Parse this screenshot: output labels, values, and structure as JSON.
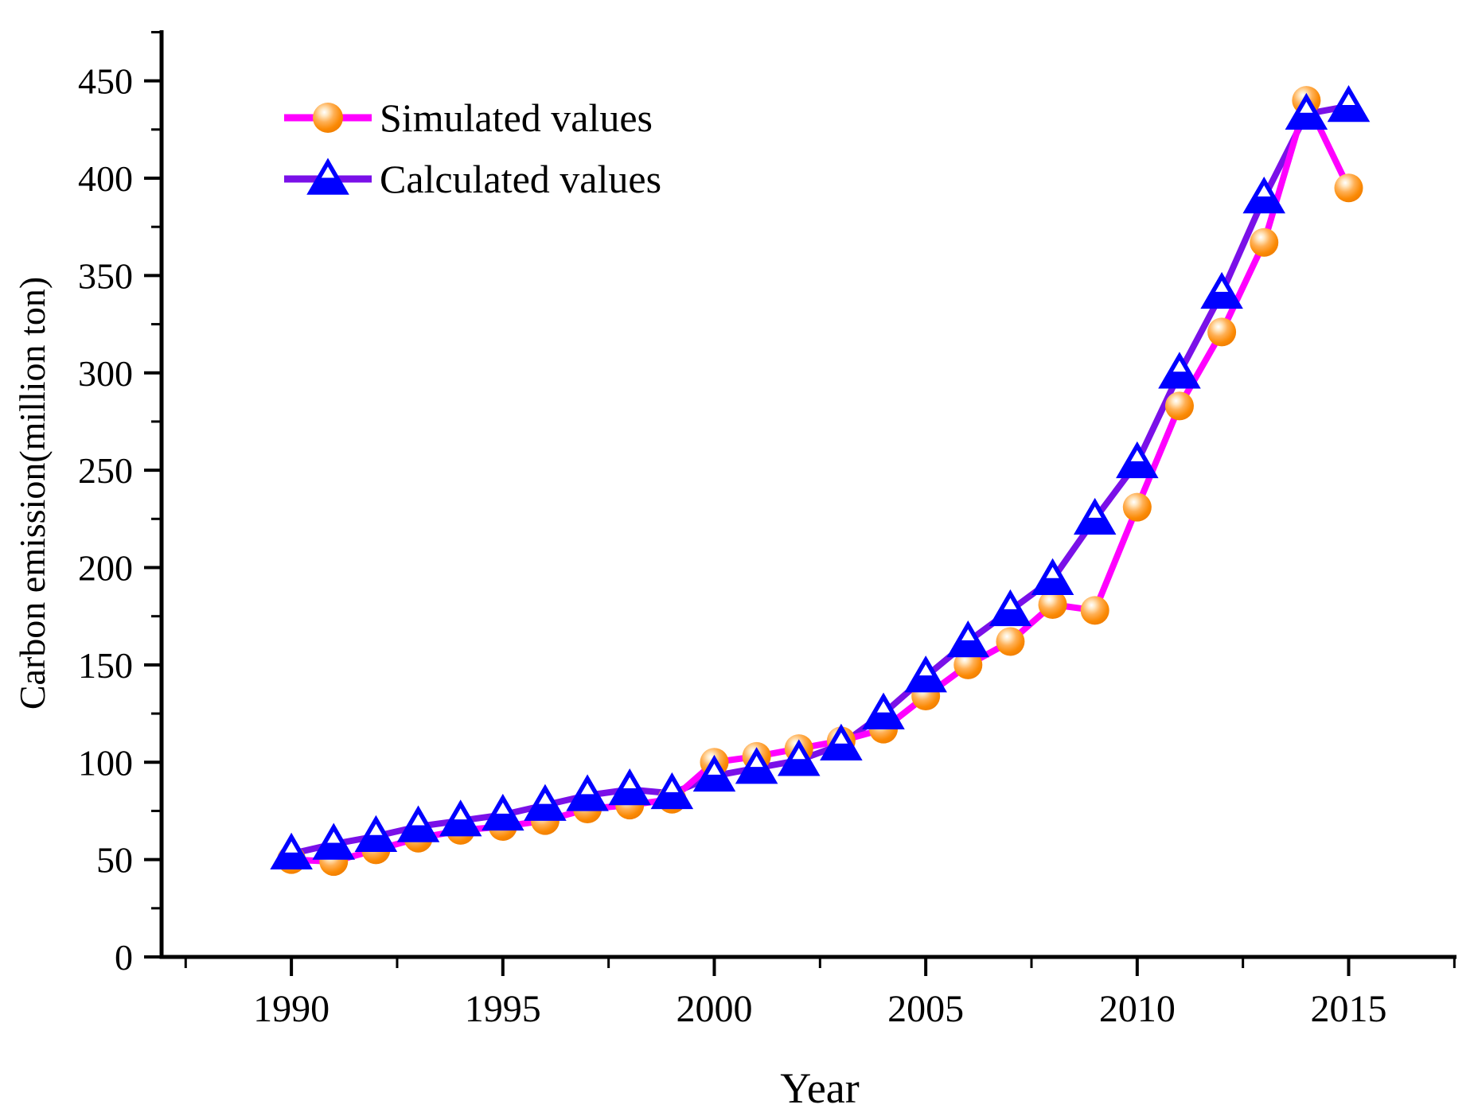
{
  "chart_data": {
    "type": "line",
    "title": "",
    "xlabel": "Year",
    "ylabel": "Carbon emission(million ton)",
    "grid": false,
    "legend_position": "top-left-inside",
    "xlim": [
      1986.93,
      2017.55
    ],
    "ylim": [
      0,
      476
    ],
    "x_major_ticks": [
      1990,
      1995,
      2000,
      2005,
      2010,
      2015
    ],
    "x_minor_ticks": [
      1987.5,
      1992.5,
      1997.5,
      2002.5,
      2007.5,
      2012.5,
      2017.5
    ],
    "y_major_ticks": [
      0,
      50,
      100,
      150,
      200,
      250,
      300,
      350,
      400,
      450
    ],
    "y_minor_ticks": [
      25,
      75,
      125,
      175,
      225,
      275,
      325,
      375,
      425,
      475
    ],
    "x": [
      1990,
      1991,
      1992,
      1993,
      1994,
      1995,
      1996,
      1997,
      1998,
      1999,
      2000,
      2001,
      2002,
      2003,
      2004,
      2005,
      2006,
      2007,
      2008,
      2009,
      2010,
      2011,
      2012,
      2013,
      2014,
      2015
    ],
    "series": [
      {
        "name": "Simulated values",
        "marker": "circle",
        "line_color": "#FF00FF",
        "marker_color": "#FF8C00",
        "values": [
          50,
          49,
          55,
          61,
          65,
          67,
          70,
          76,
          78,
          81,
          100,
          103,
          107,
          111,
          117,
          134,
          150,
          162,
          181,
          178,
          231,
          283,
          321,
          367,
          440,
          395
        ]
      },
      {
        "name": "Calculated values",
        "marker": "triangle",
        "line_color": "#7A10E8",
        "marker_color": "#0000FF",
        "values": [
          53,
          58,
          62,
          67,
          70,
          73,
          78,
          83,
          86,
          84,
          93,
          97,
          101,
          109,
          125,
          144,
          162,
          178,
          194,
          225,
          254,
          300,
          341,
          390,
          433,
          437
        ]
      }
    ],
    "axis_color": "#000000",
    "background_color": "#FFFFFF"
  }
}
